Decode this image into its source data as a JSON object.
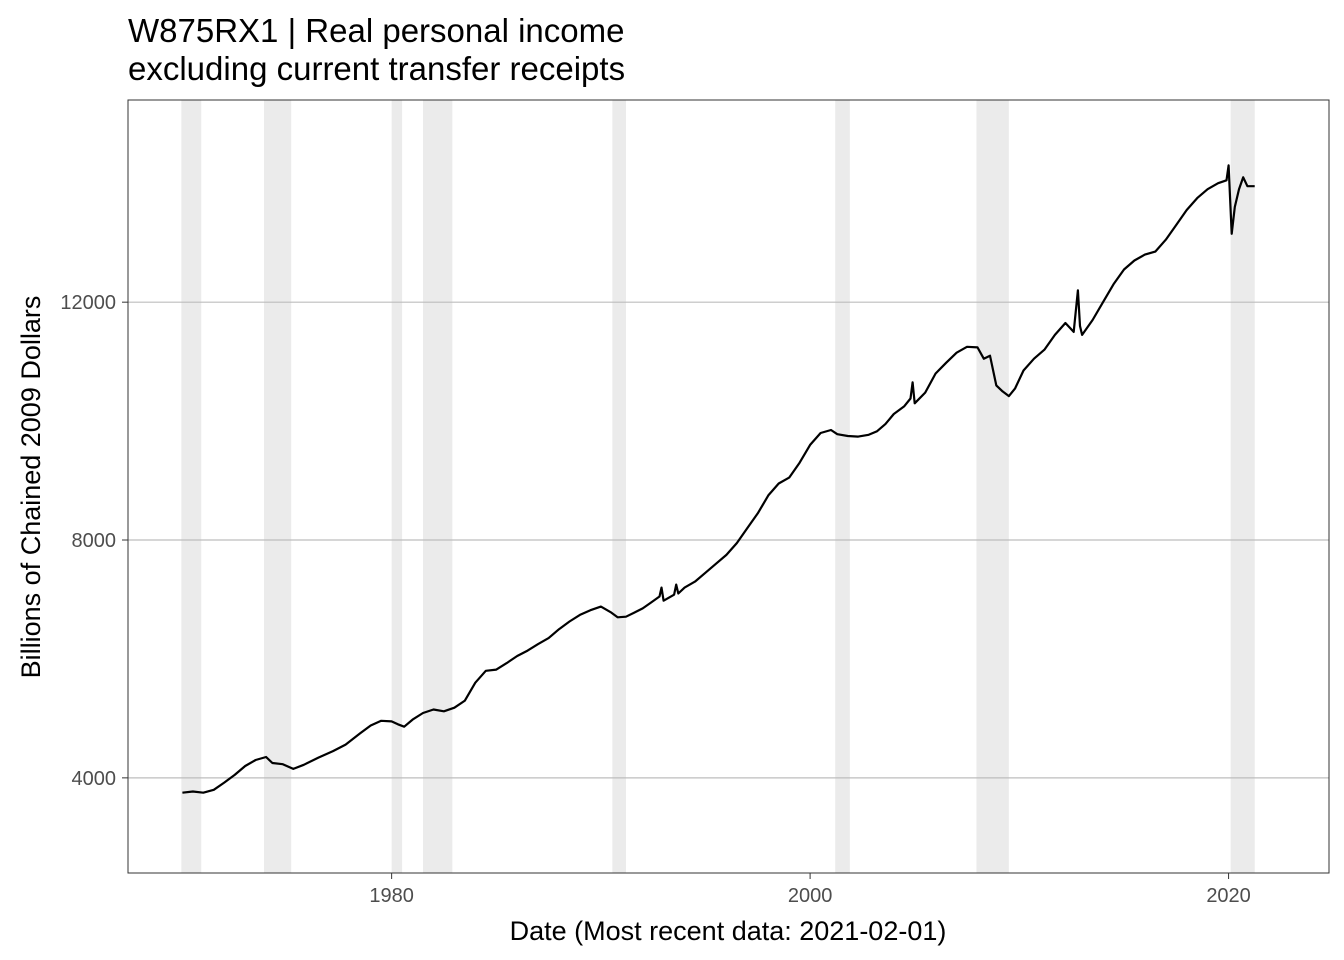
{
  "chart_data": {
    "type": "line",
    "title": "W875RX1 | Real personal income",
    "subtitle": "excluding current transfer receipts",
    "xlabel": "Date (Most recent data: 2021-02-01)",
    "ylabel": "Billions of Chained 2009 Dollars",
    "xlim": [
      1967.4,
      2024.8
    ],
    "ylim": [
      2400,
      15400
    ],
    "x_ticks": [
      1980,
      2000,
      2020
    ],
    "y_ticks": [
      4000,
      8000,
      12000
    ],
    "grid": "horizontal major",
    "line_color": "#000000",
    "recession_color": "#ebebeb",
    "recessions": [
      [
        1969.95,
        1970.9
      ],
      [
        1973.9,
        1975.2
      ],
      [
        1980.0,
        1980.5
      ],
      [
        1981.5,
        1982.9
      ],
      [
        1990.55,
        1991.2
      ],
      [
        2001.2,
        2001.9
      ],
      [
        2007.95,
        2009.5
      ],
      [
        2020.1,
        2021.25
      ]
    ],
    "series": [
      {
        "x": [
          1970.0,
          1970.5,
          1971.0,
          1971.5,
          1972.0,
          1972.5,
          1973.0,
          1973.5,
          1974.0,
          1974.3,
          1974.8,
          1975.3,
          1975.8,
          1976.5,
          1977.2,
          1977.8,
          1978.5,
          1979.0,
          1979.5,
          1980.0,
          1980.3,
          1980.6,
          1981.0,
          1981.5,
          1982.0,
          1982.5,
          1983.0,
          1983.5,
          1984.0,
          1984.5,
          1985.0,
          1985.5,
          1986.0,
          1986.5,
          1987.0,
          1987.5,
          1988.0,
          1988.5,
          1989.0,
          1989.5,
          1990.0,
          1990.5,
          1990.8,
          1991.2,
          1991.6,
          1992.0,
          1992.4,
          1992.8,
          1992.9,
          1993.0,
          1993.5,
          1993.6,
          1993.7,
          1994.0,
          1994.5,
          1995.0,
          1995.5,
          1996.0,
          1996.5,
          1997.0,
          1997.5,
          1998.0,
          1998.5,
          1999.0,
          1999.5,
          2000.0,
          2000.5,
          2001.0,
          2001.3,
          2001.8,
          2002.3,
          2002.8,
          2003.2,
          2003.6,
          2004.0,
          2004.5,
          2004.8,
          2004.9,
          2005.0,
          2005.5,
          2006.0,
          2006.5,
          2007.0,
          2007.5,
          2008.0,
          2008.3,
          2008.6,
          2008.9,
          2009.2,
          2009.5,
          2009.8,
          2010.2,
          2010.7,
          2011.2,
          2011.7,
          2012.2,
          2012.6,
          2012.8,
          2012.9,
          2013.0,
          2013.5,
          2014.0,
          2014.5,
          2015.0,
          2015.5,
          2016.0,
          2016.5,
          2017.0,
          2017.5,
          2018.0,
          2018.5,
          2019.0,
          2019.5,
          2019.9,
          2020.0,
          2020.15,
          2020.3,
          2020.5,
          2020.7,
          2020.9,
          2021.1,
          2021.25
        ],
        "y": [
          3750,
          3770,
          3750,
          3800,
          3920,
          4050,
          4200,
          4300,
          4350,
          4250,
          4230,
          4150,
          4220,
          4340,
          4450,
          4560,
          4750,
          4880,
          4960,
          4950,
          4900,
          4860,
          4980,
          5090,
          5150,
          5120,
          5180,
          5300,
          5600,
          5800,
          5820,
          5930,
          6050,
          6140,
          6250,
          6350,
          6500,
          6630,
          6740,
          6820,
          6880,
          6780,
          6700,
          6710,
          6780,
          6850,
          6950,
          7050,
          7200,
          6980,
          7080,
          7250,
          7100,
          7200,
          7300,
          7450,
          7600,
          7750,
          7950,
          8200,
          8450,
          8750,
          8950,
          9050,
          9300,
          9600,
          9800,
          9850,
          9780,
          9750,
          9740,
          9770,
          9830,
          9950,
          10120,
          10250,
          10380,
          10650,
          10300,
          10480,
          10800,
          10980,
          11150,
          11250,
          11240,
          11050,
          11100,
          10600,
          10500,
          10420,
          10550,
          10850,
          11050,
          11200,
          11450,
          11650,
          11500,
          12200,
          11600,
          11450,
          11700,
          12000,
          12300,
          12550,
          12700,
          12800,
          12850,
          13050,
          13300,
          13550,
          13750,
          13900,
          14000,
          14050,
          14300,
          13150,
          13600,
          13900,
          14100,
          13950,
          13950,
          13950
        ]
      }
    ]
  }
}
